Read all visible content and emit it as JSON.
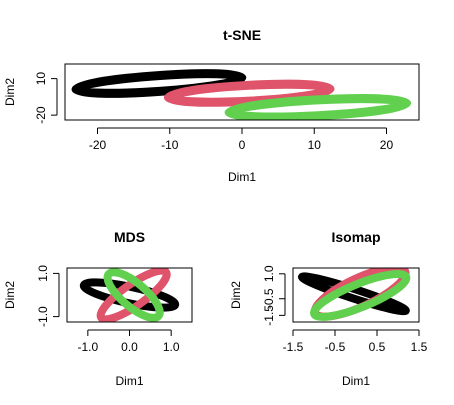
{
  "chart_data": [
    {
      "type": "scatter",
      "title": "t-SNE",
      "xlabel": "Dim1",
      "ylabel": "Dim2",
      "xlim": [
        -24.5,
        24.5
      ],
      "ylim": [
        -24,
        22
      ],
      "xticks": [
        -20,
        -10,
        0,
        10,
        20
      ],
      "yticks": [
        -20,
        10
      ],
      "ytick_labels": [
        "-20",
        "10"
      ],
      "grid": false,
      "series": [
        {
          "color": "#000000",
          "ellipse": {
            "cx": -11.5,
            "cy": 6,
            "rx": 11.5,
            "ry": 6.5,
            "angle_deg": 4
          }
        },
        {
          "color": "#DF536B",
          "ellipse": {
            "cx": 1,
            "cy": -2,
            "rx": 11.2,
            "ry": 6.5,
            "angle_deg": 3
          }
        },
        {
          "color": "#61D04F",
          "ellipse": {
            "cx": 10.5,
            "cy": -14,
            "rx": 12.3,
            "ry": 6.5,
            "angle_deg": 3
          }
        }
      ]
    },
    {
      "type": "scatter",
      "title": "MDS",
      "xlabel": "Dim1",
      "ylabel": "Dim2",
      "xlim": [
        -1.5,
        1.5
      ],
      "ylim": [
        -1.25,
        1.25
      ],
      "xticks": [
        -1.0,
        0.0,
        1.0
      ],
      "xtick_labels": [
        "-1.0",
        "0.0",
        "1.0"
      ],
      "yticks": [
        1.0,
        -1.0
      ],
      "ytick_labels": [
        "1.0",
        "-1.0"
      ],
      "grid": false,
      "series": [
        {
          "color": "#000000",
          "ellipse": {
            "cx": 0,
            "cy": 0,
            "rx": 1.12,
            "ry": 0.38,
            "angle_deg": -12
          }
        },
        {
          "color": "#DF536B",
          "ellipse": {
            "cx": 0.1,
            "cy": 0,
            "rx": 0.95,
            "ry": 0.5,
            "angle_deg": 35
          }
        },
        {
          "color": "#61D04F",
          "ellipse": {
            "cx": 0.1,
            "cy": 0,
            "rx": 0.78,
            "ry": 0.55,
            "angle_deg": -40
          }
        }
      ]
    },
    {
      "type": "scatter",
      "title": "Isomap",
      "xlabel": "Dim1",
      "ylabel": "Dim2",
      "xlim": [
        -1.5,
        1.5
      ],
      "ylim": [
        -1.9,
        1.35
      ],
      "xticks": [
        -1.5,
        -0.5,
        0.5,
        1.5
      ],
      "xtick_labels": [
        "-1.5",
        "-0.5",
        "0.5",
        "1.5"
      ],
      "yticks": [
        1.0,
        -0.5,
        -1.5
      ],
      "ytick_labels": [
        "1.0",
        "-0.5",
        "-1.5"
      ],
      "grid": false,
      "series": [
        {
          "color": "#000000",
          "ellipse": {
            "cx": -0.05,
            "cy": -0.2,
            "rx": 1.3,
            "ry": 0.28,
            "angle_deg": -18
          }
        },
        {
          "color": "#DF536B",
          "ellipse": {
            "cx": 0.1,
            "cy": -0.1,
            "rx": 1.18,
            "ry": 0.85,
            "angle_deg": 25
          }
        },
        {
          "color": "#61D04F",
          "ellipse": {
            "cx": 0.1,
            "cy": -0.3,
            "rx": 1.18,
            "ry": 0.7,
            "angle_deg": 22
          }
        }
      ]
    }
  ]
}
